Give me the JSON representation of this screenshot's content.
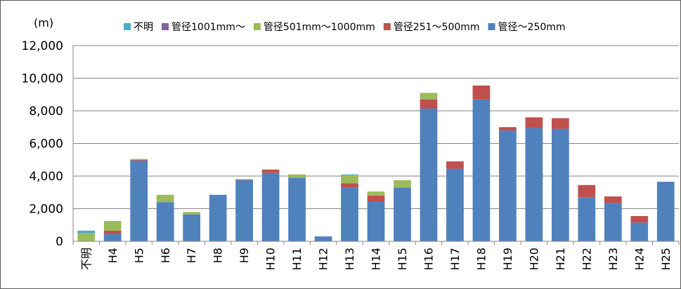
{
  "chart_data": {
    "type": "bar",
    "stacked": true,
    "unit_label": "(m)",
    "title": "",
    "xlabel": "",
    "ylabel": "",
    "ylim": [
      0,
      12000
    ],
    "yticks": [
      0,
      2000,
      4000,
      6000,
      8000,
      10000,
      12000
    ],
    "ytick_labels": [
      "0",
      "2,000",
      "4,000",
      "6,000",
      "8,000",
      "10,000",
      "12,000"
    ],
    "grid": true,
    "legend_position": "top",
    "categories": [
      "不明",
      "H4",
      "H5",
      "H6",
      "H7",
      "H8",
      "H9",
      "H10",
      "H11",
      "H12",
      "H13",
      "H14",
      "H15",
      "H16",
      "H17",
      "H18",
      "H19",
      "H20",
      "H21",
      "H22",
      "H23",
      "H24",
      "H25"
    ],
    "series": [
      {
        "name": "管径～250mm",
        "color": "#4F81BD",
        "values": [
          0,
          450,
          4950,
          2400,
          1650,
          2850,
          3750,
          4200,
          3900,
          300,
          3300,
          2450,
          3300,
          8150,
          4450,
          8700,
          6800,
          6950,
          6900,
          2700,
          2350,
          1150,
          3650
        ]
      },
      {
        "name": "管径251～500mm",
        "color": "#C0504D",
        "values": [
          0,
          200,
          50,
          0,
          0,
          0,
          50,
          200,
          0,
          0,
          250,
          350,
          0,
          550,
          450,
          850,
          200,
          650,
          650,
          750,
          400,
          400,
          0
        ]
      },
      {
        "name": "管径501mm～1000mm",
        "color": "#9BBB59",
        "values": [
          500,
          600,
          50,
          450,
          150,
          0,
          0,
          0,
          200,
          0,
          500,
          250,
          450,
          400,
          0,
          0,
          0,
          0,
          0,
          0,
          0,
          0,
          0
        ]
      },
      {
        "name": "管径1001mm～",
        "color": "#8064A2",
        "values": [
          0,
          0,
          0,
          0,
          0,
          0,
          0,
          0,
          0,
          0,
          0,
          0,
          0,
          0,
          0,
          0,
          0,
          0,
          0,
          0,
          0,
          0,
          0
        ]
      },
      {
        "name": "不明",
        "color": "#4BACC6",
        "values": [
          150,
          0,
          0,
          0,
          0,
          0,
          0,
          0,
          0,
          0,
          50,
          0,
          0,
          0,
          0,
          0,
          0,
          0,
          0,
          0,
          0,
          0,
          0
        ]
      }
    ],
    "legend_order": [
      "不明",
      "管径1001mm～",
      "管径501mm～1000mm",
      "管径251～500mm",
      "管径～250mm"
    ],
    "colors": {
      "gridline": "#868686",
      "axis": "#868686",
      "frame": "#595959"
    }
  }
}
